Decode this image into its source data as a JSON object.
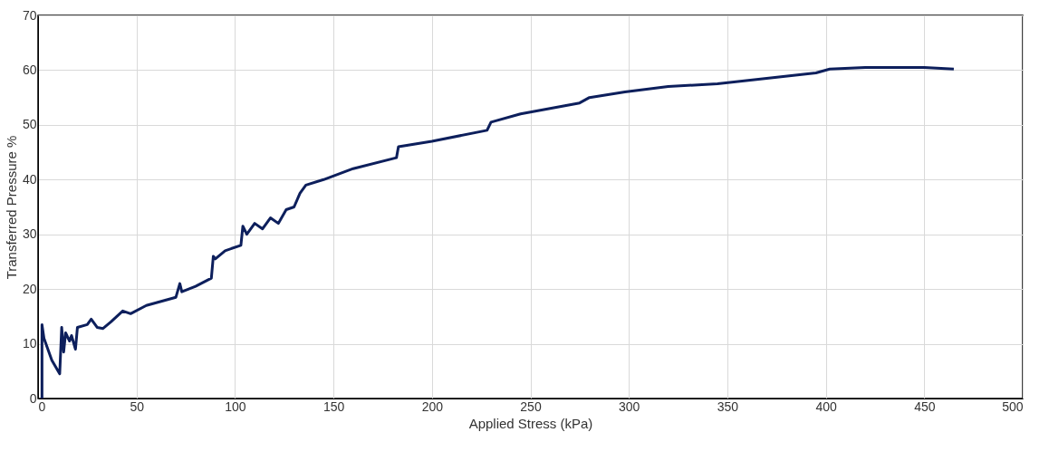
{
  "chart_data": {
    "type": "line",
    "xlabel": "Applied Stress (kPa)",
    "ylabel": "Transferred Pressure %",
    "x": [
      2,
      2,
      3,
      7,
      11,
      12,
      13,
      14,
      16,
      17,
      19,
      20,
      25,
      27,
      30,
      33,
      37,
      40,
      43,
      47,
      55,
      60,
      70,
      72,
      73,
      80,
      88,
      89,
      90,
      95,
      103,
      104,
      106,
      110,
      114,
      118,
      122,
      126,
      130,
      133,
      136,
      145,
      160,
      182,
      183,
      200,
      228,
      230,
      245,
      275,
      280,
      298,
      320,
      345,
      370,
      395,
      402,
      420,
      450,
      465
    ],
    "series": [
      {
        "color": "#0d1f5c",
        "values": [
          0,
          13.5,
          11,
          7,
          4.5,
          13,
          8.5,
          12,
          10.5,
          11.5,
          9,
          13,
          13.5,
          14.5,
          13,
          12.8,
          14,
          15,
          16,
          15.5,
          17,
          17.5,
          18.5,
          21,
          19.5,
          20.5,
          22,
          26,
          25.5,
          27,
          28,
          31.5,
          30,
          32,
          31,
          33,
          32,
          34.5,
          35,
          37.5,
          39,
          40,
          42,
          44,
          46,
          47,
          49,
          50.5,
          52,
          54,
          55,
          56,
          57,
          57.5,
          58.5,
          59.5,
          60.2,
          60.5,
          60.5,
          60.2
        ]
      }
    ],
    "xlim": [
      0,
      500
    ],
    "xticks": [
      0,
      50,
      100,
      150,
      200,
      250,
      300,
      350,
      400,
      450,
      500
    ],
    "ylim": [
      0,
      70
    ],
    "yticks": [
      0,
      10,
      20,
      30,
      40,
      50,
      60,
      70
    ],
    "grid": true,
    "marker": "none",
    "line_style": "solid"
  }
}
